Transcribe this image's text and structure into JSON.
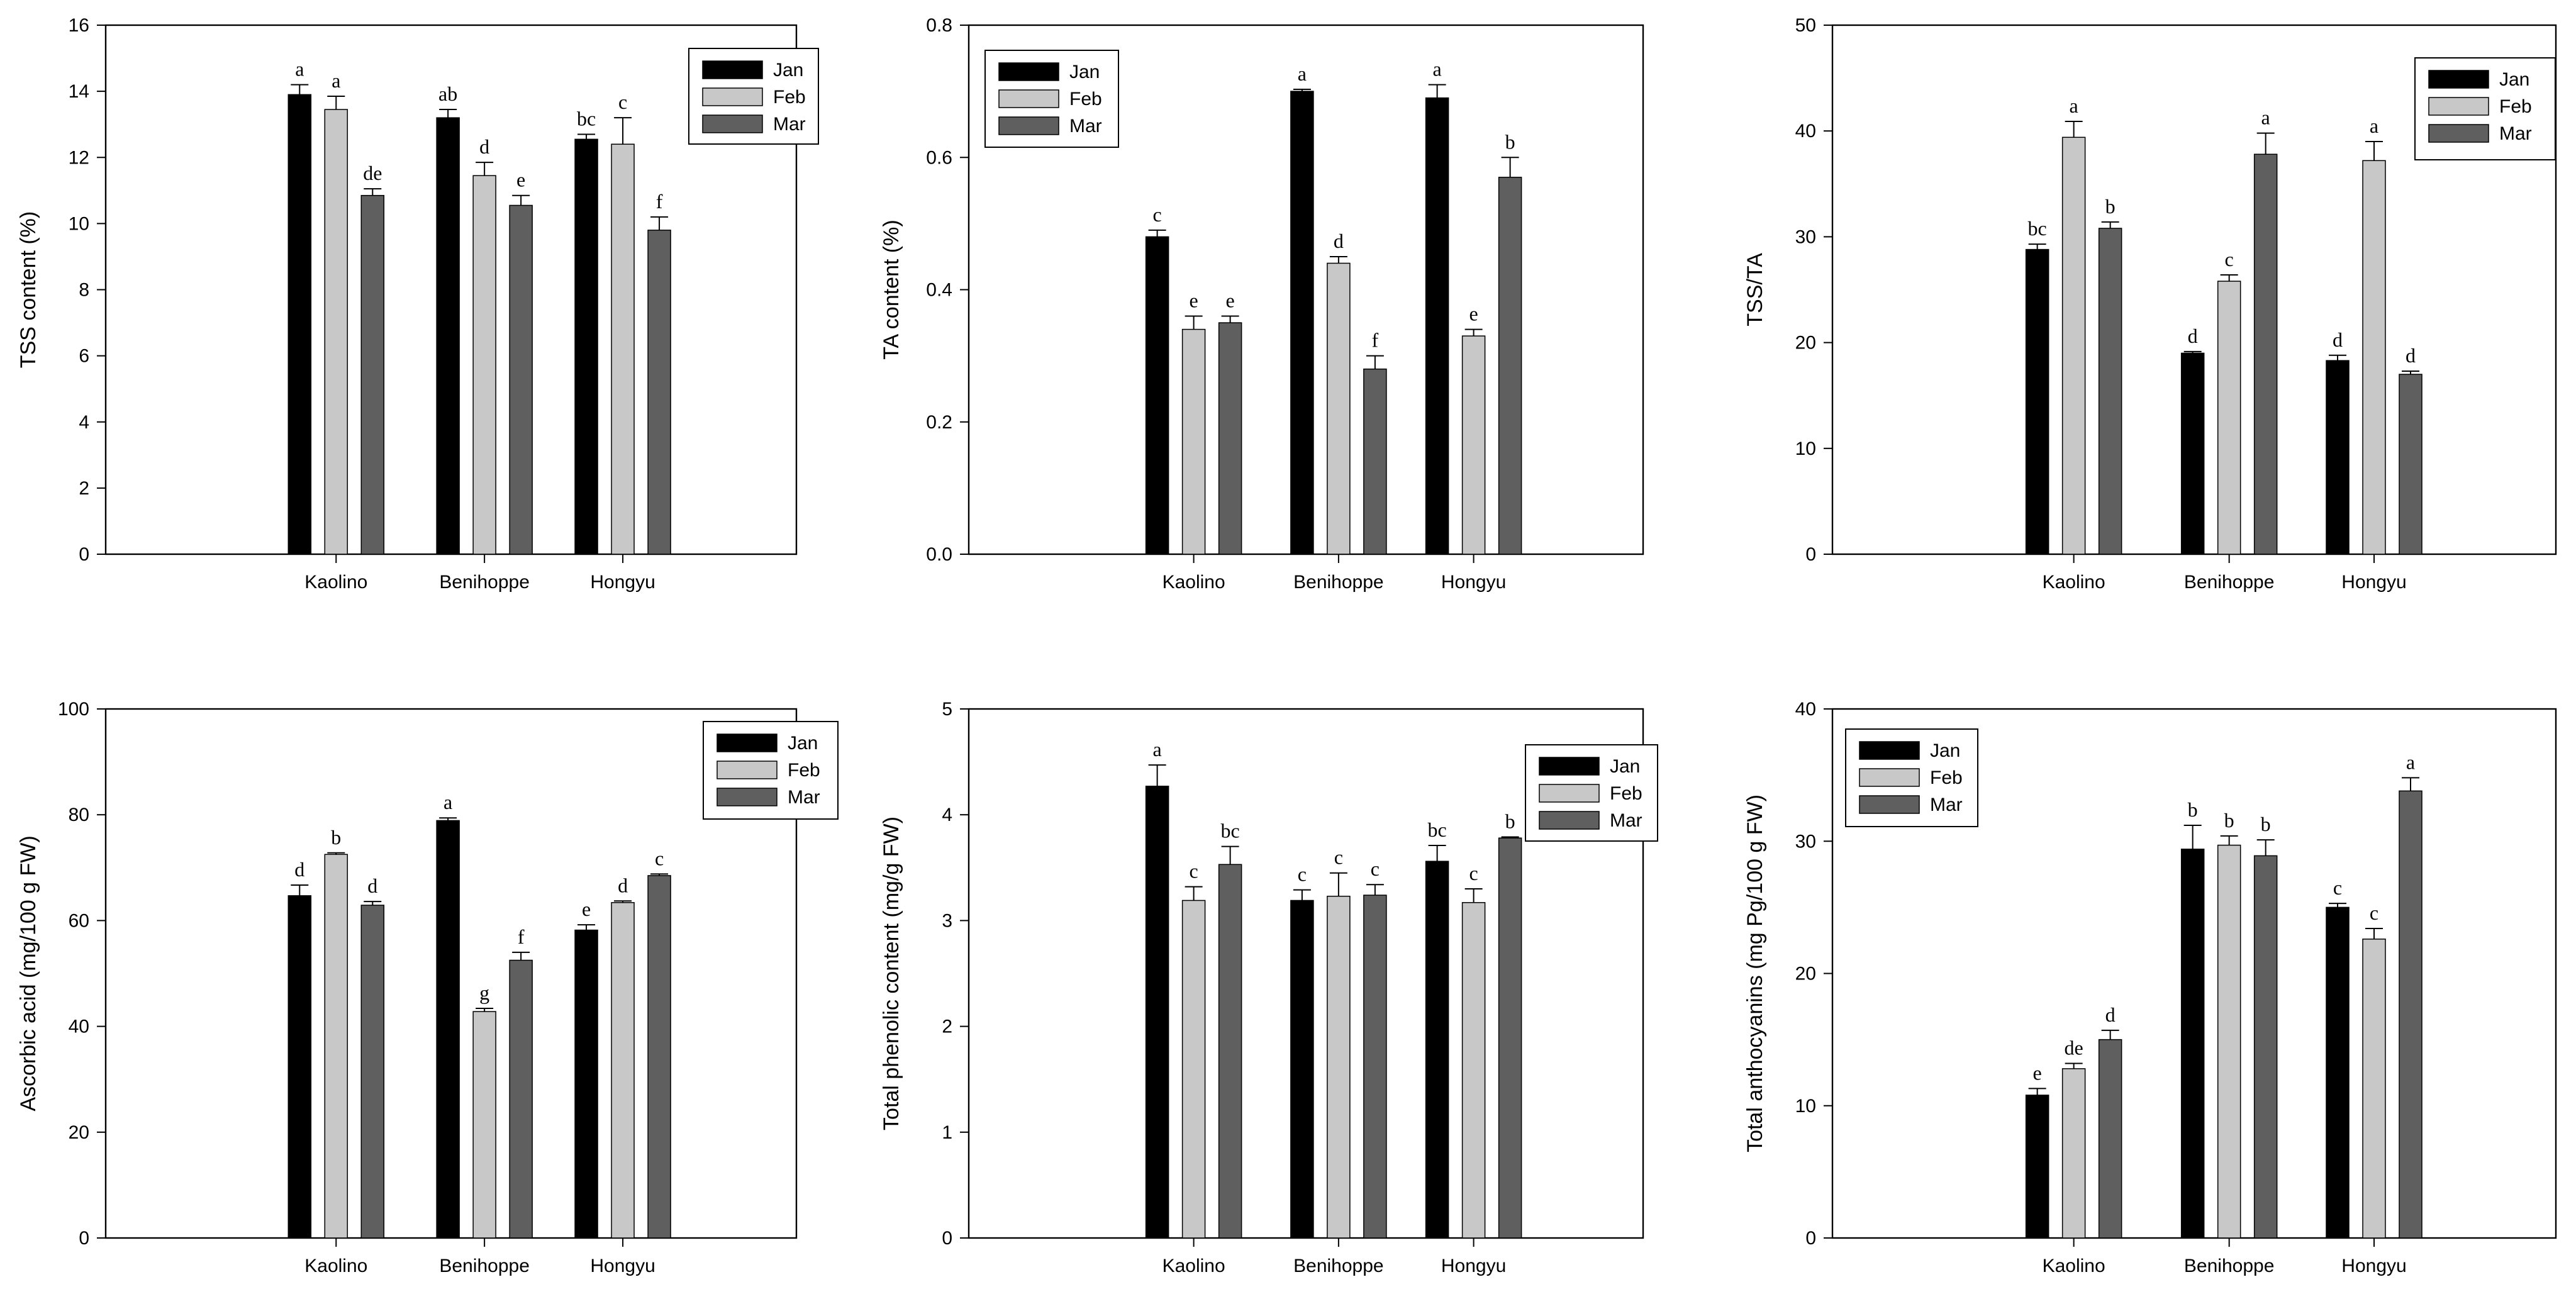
{
  "colors": {
    "Jan": "#000000",
    "Feb": "#c8c8c8",
    "Mar": "#5f5f5f",
    "axis": "#000000"
  },
  "chart_data": [
    {
      "type": "bar",
      "title": "",
      "xlabel": "",
      "ylabel": "TSS content (%)",
      "categories": [
        "Kaolino",
        "Benihoppe",
        "Hongyu"
      ],
      "ylim": [
        0,
        16
      ],
      "yticks": [
        0,
        2,
        4,
        6,
        8,
        10,
        12,
        14,
        16
      ],
      "ytick_labels": [
        "0",
        "2",
        "4",
        "6",
        "8",
        "10",
        "12",
        "14",
        "16"
      ],
      "legend": "top-right",
      "series": [
        {
          "name": "Jan",
          "values": [
            13.9,
            13.2,
            12.55
          ],
          "errors": [
            0.3,
            0.25,
            0.15
          ],
          "letters": [
            "a",
            "ab",
            "bc"
          ]
        },
        {
          "name": "Feb",
          "values": [
            13.45,
            11.45,
            12.4
          ],
          "errors": [
            0.4,
            0.4,
            0.8
          ],
          "letters": [
            "a",
            "d",
            "c"
          ]
        },
        {
          "name": "Mar",
          "values": [
            10.85,
            10.55,
            9.8
          ],
          "errors": [
            0.2,
            0.3,
            0.4
          ],
          "letters": [
            "de",
            "e",
            "f"
          ]
        }
      ]
    },
    {
      "type": "bar",
      "title": "",
      "xlabel": "",
      "ylabel": "TA content (%)",
      "categories": [
        "Kaolino",
        "Benihoppe",
        "Hongyu"
      ],
      "ylim": [
        0,
        0.8
      ],
      "yticks": [
        0,
        0.2,
        0.4,
        0.6,
        0.8
      ],
      "ytick_labels": [
        "0.0",
        "0.2",
        "0.4",
        "0.6",
        "0.8"
      ],
      "legend": "top-left",
      "series": [
        {
          "name": "Jan",
          "values": [
            0.48,
            0.7,
            0.69
          ],
          "errors": [
            0.01,
            0.003,
            0.02
          ],
          "letters": [
            "c",
            "a",
            "a"
          ]
        },
        {
          "name": "Feb",
          "values": [
            0.34,
            0.44,
            0.33
          ],
          "errors": [
            0.02,
            0.01,
            0.01
          ],
          "letters": [
            "e",
            "d",
            "e"
          ]
        },
        {
          "name": "Mar",
          "values": [
            0.35,
            0.28,
            0.57
          ],
          "errors": [
            0.01,
            0.02,
            0.03
          ],
          "letters": [
            "e",
            "f",
            "b"
          ]
        }
      ]
    },
    {
      "type": "bar",
      "title": "",
      "xlabel": "",
      "ylabel": "TSS/TA",
      "categories": [
        "Kaolino",
        "Benihoppe",
        "Hongyu"
      ],
      "ylim": [
        0,
        50
      ],
      "yticks": [
        0,
        10,
        20,
        30,
        40,
        50
      ],
      "ytick_labels": [
        "0",
        "10",
        "20",
        "30",
        "40",
        "50"
      ],
      "legend": "top-right",
      "series": [
        {
          "name": "Jan",
          "values": [
            28.8,
            19.0,
            18.3
          ],
          "errors": [
            0.5,
            0.15,
            0.5
          ],
          "letters": [
            "bc",
            "d",
            "d"
          ]
        },
        {
          "name": "Feb",
          "values": [
            39.4,
            25.8,
            37.2
          ],
          "errors": [
            1.5,
            0.6,
            1.8
          ],
          "letters": [
            "a",
            "c",
            "a"
          ]
        },
        {
          "name": "Mar",
          "values": [
            30.8,
            37.8,
            17.0
          ],
          "errors": [
            0.6,
            2.0,
            0.3
          ],
          "letters": [
            "b",
            "a",
            "d"
          ]
        }
      ]
    },
    {
      "type": "bar",
      "title": "",
      "xlabel": "",
      "ylabel": "Ascorbic acid (mg/100 g FW)",
      "categories": [
        "Kaolino",
        "Benihoppe",
        "Hongyu"
      ],
      "ylim": [
        0,
        100
      ],
      "yticks": [
        0,
        20,
        40,
        60,
        80,
        100
      ],
      "ytick_labels": [
        "0",
        "20",
        "40",
        "60",
        "80",
        "100"
      ],
      "legend": "top-right",
      "series": [
        {
          "name": "Jan",
          "values": [
            64.7,
            78.9,
            58.2
          ],
          "errors": [
            2.0,
            0.5,
            1.0
          ],
          "letters": [
            "d",
            "a",
            "e"
          ]
        },
        {
          "name": "Feb",
          "values": [
            72.5,
            42.8,
            63.4
          ],
          "errors": [
            0.3,
            0.6,
            0.3
          ],
          "letters": [
            "b",
            "g",
            "d"
          ]
        },
        {
          "name": "Mar",
          "values": [
            62.9,
            52.5,
            68.5
          ],
          "errors": [
            0.7,
            1.5,
            0.3
          ],
          "letters": [
            "d",
            "f",
            "c"
          ]
        }
      ]
    },
    {
      "type": "bar",
      "title": "",
      "xlabel": "",
      "ylabel": "Total phenolic content (mg/g FW)",
      "categories": [
        "Kaolino",
        "Benihoppe",
        "Hongyu"
      ],
      "ylim": [
        0,
        5
      ],
      "yticks": [
        0,
        1,
        2,
        3,
        4,
        5
      ],
      "ytick_labels": [
        "0",
        "1",
        "2",
        "3",
        "4",
        "5"
      ],
      "legend": "top-right",
      "series": [
        {
          "name": "Jan",
          "values": [
            4.27,
            3.19,
            3.56
          ],
          "errors": [
            0.2,
            0.1,
            0.15
          ],
          "letters": [
            "a",
            "c",
            "bc"
          ]
        },
        {
          "name": "Feb",
          "values": [
            3.19,
            3.23,
            3.17
          ],
          "errors": [
            0.13,
            0.22,
            0.13
          ],
          "letters": [
            "c",
            "c",
            "c"
          ]
        },
        {
          "name": "Mar",
          "values": [
            3.53,
            3.24,
            3.78
          ],
          "errors": [
            0.17,
            0.1,
            0.01
          ],
          "letters": [
            "bc",
            "c",
            "b"
          ]
        }
      ]
    },
    {
      "type": "bar",
      "title": "",
      "xlabel": "",
      "ylabel": "Total  anthocyanins (mg Pg/100 g FW)",
      "categories": [
        "Kaolino",
        "Benihoppe",
        "Hongyu"
      ],
      "ylim": [
        0,
        40
      ],
      "yticks": [
        0,
        10,
        20,
        30,
        40
      ],
      "ytick_labels": [
        "0",
        "10",
        "20",
        "30",
        "40"
      ],
      "legend": "top-left",
      "series": [
        {
          "name": "Jan",
          "values": [
            10.8,
            29.4,
            25.0
          ],
          "errors": [
            0.5,
            1.8,
            0.3
          ],
          "letters": [
            "e",
            "b",
            "c"
          ]
        },
        {
          "name": "Feb",
          "values": [
            12.8,
            29.7,
            22.6
          ],
          "errors": [
            0.4,
            0.7,
            0.8
          ],
          "letters": [
            "de",
            "b",
            "c"
          ]
        },
        {
          "name": "Mar",
          "values": [
            15.0,
            28.9,
            33.8
          ],
          "errors": [
            0.7,
            1.2,
            1.0
          ],
          "letters": [
            "d",
            "b",
            "a"
          ]
        }
      ]
    }
  ]
}
